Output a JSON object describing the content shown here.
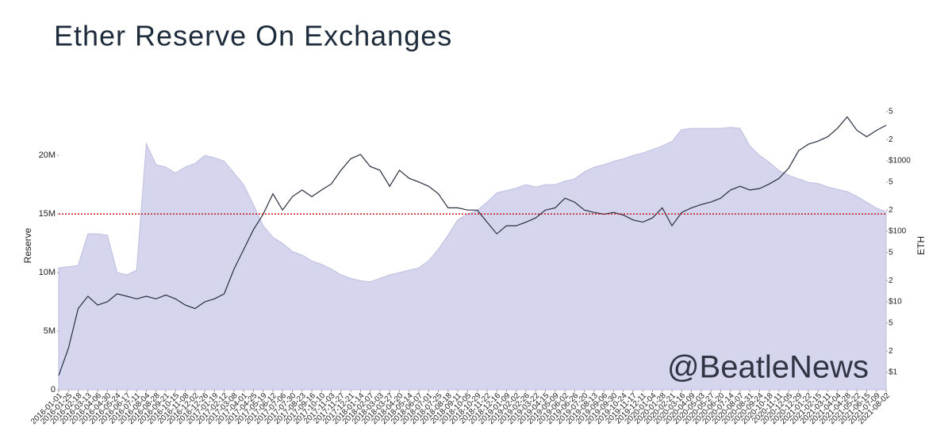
{
  "chart_data": {
    "type": "combo",
    "title": "Ether Reserve On Exchanges",
    "ylabel": "Reserve",
    "y2label": "ETH",
    "watermark": "@BeatleNews",
    "categories": [
      "2016-01-01",
      "2016-01-25",
      "2016-02-18",
      "2016-03-13",
      "2016-04-06",
      "2016-04-30",
      "2016-05-24",
      "2016-06-17",
      "2016-07-11",
      "2016-08-04",
      "2016-08-28",
      "2016-09-21",
      "2016-10-15",
      "2016-11-08",
      "2016-12-02",
      "2016-12-26",
      "2017-01-19",
      "2017-02-12",
      "2017-03-08",
      "2017-04-01",
      "2017-04-25",
      "2017-05-19",
      "2017-06-12",
      "2017-07-06",
      "2017-07-30",
      "2017-08-23",
      "2017-09-16",
      "2017-10-10",
      "2017-11-03",
      "2017-11-27",
      "2017-12-21",
      "2018-01-14",
      "2018-02-07",
      "2018-03-03",
      "2018-03-27",
      "2018-04-20",
      "2018-05-14",
      "2018-06-07",
      "2018-07-01",
      "2018-07-25",
      "2018-08-18",
      "2018-09-11",
      "2018-10-05",
      "2018-10-29",
      "2018-11-22",
      "2018-12-16",
      "2019-01-09",
      "2019-02-02",
      "2019-02-26",
      "2019-03-22",
      "2019-04-15",
      "2019-05-09",
      "2019-06-02",
      "2019-06-26",
      "2019-07-20",
      "2019-08-13",
      "2019-09-06",
      "2019-09-30",
      "2019-10-24",
      "2019-11-17",
      "2019-12-11",
      "2020-01-04",
      "2020-01-28",
      "2020-02-21",
      "2020-03-16",
      "2020-04-09",
      "2020-05-03",
      "2020-05-27",
      "2020-06-20",
      "2020-07-14",
      "2020-08-07",
      "2020-08-31",
      "2020-09-24",
      "2020-10-18",
      "2020-11-11",
      "2020-12-05",
      "2020-12-29",
      "2021-01-22",
      "2021-02-15",
      "2021-03-11",
      "2021-04-04",
      "2021-04-28",
      "2021-05-22",
      "2021-06-15",
      "2021-07-09",
      "2021-08-02"
    ],
    "series": [
      {
        "type": "area",
        "color": "#d5d5ee",
        "values": [
          10400000,
          10500000,
          10600000,
          13300000,
          13300000,
          13200000,
          10000000,
          9800000,
          10200000,
          21000000,
          19200000,
          19000000,
          18500000,
          19000000,
          19300000,
          20000000,
          19800000,
          19500000,
          18500000,
          17500000,
          15800000,
          14000000,
          13000000,
          12500000,
          11800000,
          11500000,
          11000000,
          10700000,
          10300000,
          9800000,
          9500000,
          9300000,
          9200000,
          9500000,
          9800000,
          10000000,
          10200000,
          10400000,
          11000000,
          12000000,
          13200000,
          14500000,
          15000000,
          15300000,
          16000000,
          16800000,
          17000000,
          17200000,
          17500000,
          17300000,
          17500000,
          17500000,
          17800000,
          18000000,
          18600000,
          19000000,
          19200000,
          19500000,
          19700000,
          20000000,
          20200000,
          20500000,
          20800000,
          21200000,
          22200000,
          22300000,
          22300000,
          22300000,
          22300000,
          22400000,
          22300000,
          20800000,
          20000000,
          19400000,
          18700000,
          18300000,
          18000000,
          17700000,
          17600000,
          17300000,
          17100000,
          16900000,
          16500000,
          16000000,
          15500000,
          15200000
        ]
      },
      {
        "type": "line",
        "axis": "y2",
        "color": "#27303f",
        "values": [
          0.9,
          2.2,
          8,
          12,
          9,
          10,
          13,
          12,
          11,
          12,
          11,
          12.5,
          11,
          9,
          8,
          10,
          11,
          13,
          29,
          55,
          105,
          175,
          340,
          200,
          310,
          385,
          310,
          385,
          470,
          735,
          1070,
          1230,
          830,
          735,
          435,
          735,
          565,
          500,
          435,
          340,
          215,
          215,
          200,
          200,
          135,
          92,
          120,
          120,
          135,
          155,
          200,
          215,
          295,
          260,
          200,
          185,
          175,
          185,
          170,
          145,
          135,
          155,
          215,
          120,
          185,
          215,
          240,
          260,
          295,
          385,
          435,
          385,
          405,
          470,
          565,
          790,
          1390,
          1720,
          1900,
          2200,
          2900,
          4200,
          2700,
          2200,
          2700,
          3200
        ]
      }
    ],
    "threshold": 15000000,
    "threshold_color": "#c0141c",
    "ylim": [
      0,
      24000000
    ],
    "yticks": [
      0,
      {
        "value": 5000000,
        "label": "5M"
      },
      {
        "value": 10000000,
        "label": "10M"
      },
      {
        "value": 15000000,
        "label": "15M"
      },
      {
        "value": 20000000,
        "label": "20M"
      }
    ],
    "y2lim": [
      0.566,
      5520
    ],
    "y2log": true,
    "y2ticks": [
      {
        "value": 1,
        "label": "$1"
      },
      2,
      5,
      {
        "value": 10,
        "label": "$10"
      },
      {
        "value": 20,
        "label": "2"
      },
      {
        "value": 50,
        "label": "5"
      },
      {
        "value": 100,
        "label": "$100"
      },
      {
        "value": 200,
        "label": "2"
      },
      {
        "value": 500,
        "label": "5"
      },
      {
        "value": 1000,
        "label": "$1000"
      },
      {
        "value": 2000,
        "label": "2"
      },
      {
        "value": 5000,
        "label": "5"
      }
    ]
  }
}
